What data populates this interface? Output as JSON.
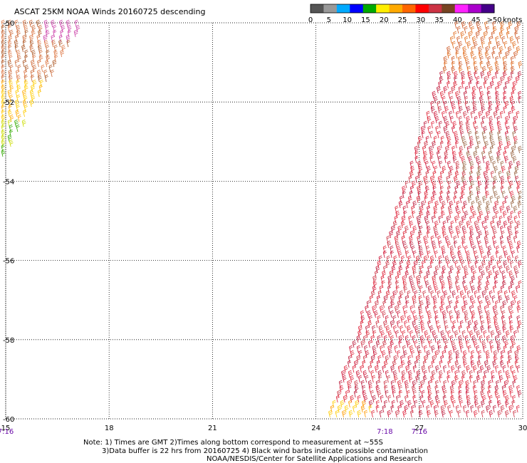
{
  "chart_data": {
    "type": "wind-barb map",
    "title": "ASCAT 25KM NOAA Winds 20160725 descending",
    "legend": {
      "ticks": [
        "0",
        "5",
        "10",
        "15",
        "20",
        "25",
        "30",
        "35",
        "40",
        "45",
        ">50"
      ],
      "unit": "knots",
      "colors": [
        "#555555",
        "#999999",
        "#00aaff",
        "#0000ff",
        "#00aa00",
        "#ffee00",
        "#ffaa00",
        "#ff6600",
        "#ff0000",
        "#cc3344",
        "#774422",
        "#ff22ff",
        "#aa00cc",
        "#440088"
      ]
    },
    "x_axis": {
      "ticks": [
        "15",
        "18",
        "21",
        "24",
        "27",
        "30"
      ],
      "range": [
        15,
        30
      ]
    },
    "y_axis": {
      "ticks": [
        "-50",
        "-52",
        "-54",
        "-56",
        "-58",
        "-60"
      ],
      "range": [
        -60,
        -50
      ]
    },
    "time_labels": [
      {
        "lon": 15,
        "text": "7:16"
      },
      {
        "lon": 26,
        "text": "7:18"
      },
      {
        "lon": 27,
        "text": "7:16"
      }
    ],
    "swaths": [
      {
        "name": "west",
        "region": "upper-left corner, about 15 to 17.5 E, -50 to -53.7"
      },
      {
        "name": "east",
        "region": "right side, about 25 to 30 E, -50 to -60"
      }
    ]
  },
  "notes": {
    "line1": "Note: 1) Times are GMT 2)Times along bottom correspond to measurement at ~55S",
    "line2": "3)Data buffer is 22 hrs from 20160725 4) Black wind barbs indicate possible contamination",
    "line3": "NOAA/NESDIS/Center for Satellite Applications and Research"
  }
}
